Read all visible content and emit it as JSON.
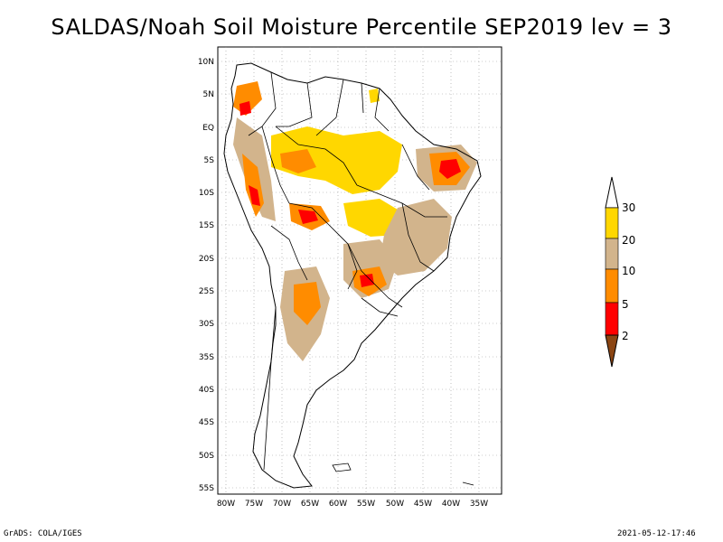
{
  "title": "SALDAS/Noah Soil Moisture Percentile SEP2019 lev = 3",
  "lat_labels": [
    "10N",
    "5N",
    "EQ",
    "5S",
    "10S",
    "15S",
    "20S",
    "25S",
    "30S",
    "35S",
    "40S",
    "45S",
    "50S",
    "55S"
  ],
  "lon_labels": [
    "80W",
    "75W",
    "70W",
    "65W",
    "60W",
    "55W",
    "50W",
    "45W",
    "40W",
    "35W"
  ],
  "legend": {
    "levels": [
      "2",
      "5",
      "10",
      "20",
      "30"
    ],
    "colors": [
      "#8b4513",
      "#ff0000",
      "#ff8c00",
      "#d2b48c",
      "#ffd700",
      "#ffffff"
    ]
  },
  "footer_left": "GrADS: COLA/IGES",
  "footer_right": "2021-05-12-17:46"
}
